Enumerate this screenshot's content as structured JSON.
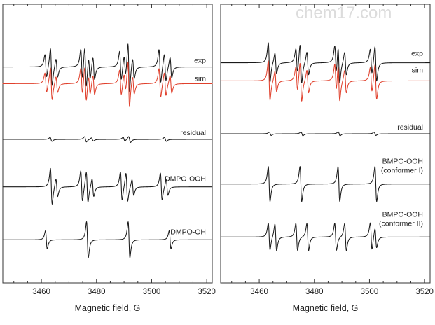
{
  "watermark": "chem17.com",
  "colors": {
    "experimental": "#1a1a1a",
    "simulated": "#e0402c",
    "axis": "#333333"
  },
  "chart_data": [
    {
      "type": "line",
      "xlabel": "Magnetic field, G",
      "xlim": [
        3446,
        3522
      ],
      "xticks": [
        3460,
        3480,
        3500,
        3520
      ],
      "y_axis_shown": false,
      "grid": false,
      "series": [
        {
          "name": "exp",
          "color": "#1a1a1a",
          "offset": 0.775,
          "amplitude": 0.075,
          "lines": [
            {
              "x": 3461.6,
              "h": 0.55,
              "w": 0.55
            },
            {
              "x": 3463.6,
              "h": 0.9,
              "w": 0.55
            },
            {
              "x": 3465.6,
              "h": 0.45,
              "w": 0.55
            },
            {
              "x": 3474.6,
              "h": 0.75,
              "w": 0.55
            },
            {
              "x": 3476.0,
              "h": 1.0,
              "w": 0.55
            },
            {
              "x": 3477.4,
              "h": 0.55,
              "w": 0.55
            },
            {
              "x": 3479.0,
              "h": 0.55,
              "w": 0.55
            },
            {
              "x": 3488.7,
              "h": 0.7,
              "w": 0.55
            },
            {
              "x": 3490.3,
              "h": 0.5,
              "w": 0.55
            },
            {
              "x": 3491.7,
              "h": 1.2,
              "w": 0.5
            },
            {
              "x": 3493.4,
              "h": 0.5,
              "w": 0.55
            },
            {
              "x": 3503.0,
              "h": 0.8,
              "w": 0.55
            },
            {
              "x": 3504.9,
              "h": 0.65,
              "w": 0.55
            },
            {
              "x": 3507.0,
              "h": 0.5,
              "w": 0.55
            }
          ]
        },
        {
          "name": "sim",
          "color": "#e0402c",
          "offset": 0.715,
          "amplitude": 0.065,
          "lines": [
            {
              "x": 3461.6,
              "h": 0.55,
              "w": 0.55
            },
            {
              "x": 3463.6,
              "h": 0.9,
              "w": 0.55
            },
            {
              "x": 3465.6,
              "h": 0.45,
              "w": 0.55
            },
            {
              "x": 3474.6,
              "h": 0.75,
              "w": 0.55
            },
            {
              "x": 3476.0,
              "h": 1.0,
              "w": 0.55
            },
            {
              "x": 3477.4,
              "h": 0.55,
              "w": 0.55
            },
            {
              "x": 3479.0,
              "h": 0.55,
              "w": 0.55
            },
            {
              "x": 3488.7,
              "h": 0.7,
              "w": 0.55
            },
            {
              "x": 3490.3,
              "h": 0.5,
              "w": 0.55
            },
            {
              "x": 3491.7,
              "h": 1.3,
              "w": 0.5
            },
            {
              "x": 3493.4,
              "h": 0.5,
              "w": 0.55
            },
            {
              "x": 3503.0,
              "h": 0.8,
              "w": 0.55
            },
            {
              "x": 3504.9,
              "h": 0.65,
              "w": 0.55
            },
            {
              "x": 3507.0,
              "h": 0.5,
              "w": 0.55
            }
          ]
        },
        {
          "name": "residual",
          "color": "#1a1a1a",
          "offset": 0.515,
          "amplitude": 0.012,
          "lines": [
            {
              "x": 3463.5,
              "h": 0.6,
              "w": 0.6
            },
            {
              "x": 3476.0,
              "h": 0.8,
              "w": 0.6
            },
            {
              "x": 3478.5,
              "h": 0.5,
              "w": 0.6
            },
            {
              "x": 3490.0,
              "h": 0.6,
              "w": 0.6
            },
            {
              "x": 3492.0,
              "h": 0.9,
              "w": 0.6
            },
            {
              "x": 3505.0,
              "h": 0.6,
              "w": 0.6
            }
          ]
        },
        {
          "name": "DMPO-OOH",
          "color": "#1a1a1a",
          "offset": 0.345,
          "amplitude": 0.065,
          "lines": [
            {
              "x": 3463.6,
              "h": 1.0,
              "w": 0.55
            },
            {
              "x": 3465.6,
              "h": 0.5,
              "w": 0.55
            },
            {
              "x": 3474.6,
              "h": 0.85,
              "w": 0.55
            },
            {
              "x": 3476.6,
              "h": 0.85,
              "w": 0.55
            },
            {
              "x": 3478.7,
              "h": 0.5,
              "w": 0.55
            },
            {
              "x": 3489.0,
              "h": 0.8,
              "w": 0.55
            },
            {
              "x": 3491.0,
              "h": 0.8,
              "w": 0.55
            },
            {
              "x": 3493.2,
              "h": 0.45,
              "w": 0.55
            },
            {
              "x": 3503.5,
              "h": 0.75,
              "w": 0.55
            },
            {
              "x": 3505.6,
              "h": 0.45,
              "w": 0.55
            }
          ]
        },
        {
          "name": "DMPO-OH",
          "color": "#1a1a1a",
          "offset": 0.155,
          "amplitude": 0.065,
          "lines": [
            {
              "x": 3461.8,
              "h": 0.5,
              "w": 0.55
            },
            {
              "x": 3476.7,
              "h": 1.0,
              "w": 0.55
            },
            {
              "x": 3491.8,
              "h": 1.0,
              "w": 0.55
            },
            {
              "x": 3506.7,
              "h": 0.5,
              "w": 0.55
            }
          ]
        }
      ]
    },
    {
      "type": "line",
      "xlabel": "Magnetic field, G",
      "xlim": [
        3446,
        3522
      ],
      "xticks": [
        3460,
        3480,
        3500,
        3520
      ],
      "y_axis_shown": false,
      "grid": false,
      "series": [
        {
          "name": "exp",
          "color": "#1a1a1a",
          "offset": 0.79,
          "amplitude": 0.075,
          "lines": [
            {
              "x": 3463.6,
              "h": 0.95,
              "w": 0.55
            },
            {
              "x": 3466.0,
              "h": 0.5,
              "w": 0.55
            },
            {
              "x": 3473.6,
              "h": 0.6,
              "w": 0.55
            },
            {
              "x": 3475.1,
              "h": 0.95,
              "w": 0.55
            },
            {
              "x": 3477.6,
              "h": 0.55,
              "w": 0.55
            },
            {
              "x": 3487.7,
              "h": 0.7,
              "w": 0.55
            },
            {
              "x": 3488.9,
              "h": 0.9,
              "w": 0.55
            },
            {
              "x": 3491.3,
              "h": 0.55,
              "w": 0.55
            },
            {
              "x": 3500.6,
              "h": 0.6,
              "w": 0.55
            },
            {
              "x": 3502.3,
              "h": 0.85,
              "w": 0.55
            }
          ]
        },
        {
          "name": "sim",
          "color": "#e0402c",
          "offset": 0.725,
          "amplitude": 0.075,
          "lines": [
            {
              "x": 3463.6,
              "h": 0.95,
              "w": 0.55
            },
            {
              "x": 3466.0,
              "h": 0.5,
              "w": 0.55
            },
            {
              "x": 3473.6,
              "h": 0.6,
              "w": 0.55
            },
            {
              "x": 3475.1,
              "h": 0.95,
              "w": 0.55
            },
            {
              "x": 3477.6,
              "h": 0.55,
              "w": 0.55
            },
            {
              "x": 3487.7,
              "h": 0.7,
              "w": 0.55
            },
            {
              "x": 3488.9,
              "h": 0.9,
              "w": 0.55
            },
            {
              "x": 3491.3,
              "h": 0.55,
              "w": 0.55
            },
            {
              "x": 3500.6,
              "h": 0.6,
              "w": 0.55
            },
            {
              "x": 3502.3,
              "h": 0.85,
              "w": 0.55
            }
          ]
        },
        {
          "name": "residual",
          "color": "#1a1a1a",
          "offset": 0.535,
          "amplitude": 0.01,
          "lines": [
            {
              "x": 3464.0,
              "h": 0.6,
              "w": 0.6
            },
            {
              "x": 3475.5,
              "h": 0.7,
              "w": 0.6
            },
            {
              "x": 3489.0,
              "h": 0.7,
              "w": 0.6
            },
            {
              "x": 3502.0,
              "h": 0.6,
              "w": 0.6
            }
          ]
        },
        {
          "name": "BMPO-OOH\n(conformer I)",
          "color": "#1a1a1a",
          "offset": 0.355,
          "amplitude": 0.07,
          "lines": [
            {
              "x": 3463.6,
              "h": 0.9,
              "w": 0.55
            },
            {
              "x": 3475.1,
              "h": 0.9,
              "w": 0.55
            },
            {
              "x": 3488.9,
              "h": 0.9,
              "w": 0.55
            },
            {
              "x": 3502.3,
              "h": 0.9,
              "w": 0.55
            }
          ]
        },
        {
          "name": "BMPO-OOH\n(conformer II)",
          "color": "#1a1a1a",
          "offset": 0.165,
          "amplitude": 0.065,
          "lines": [
            {
              "x": 3463.6,
              "h": 0.75,
              "w": 0.55
            },
            {
              "x": 3466.0,
              "h": 0.75,
              "w": 0.55
            },
            {
              "x": 3473.6,
              "h": 0.75,
              "w": 0.55
            },
            {
              "x": 3477.6,
              "h": 0.75,
              "w": 0.55
            },
            {
              "x": 3487.7,
              "h": 0.75,
              "w": 0.55
            },
            {
              "x": 3491.3,
              "h": 0.75,
              "w": 0.55
            },
            {
              "x": 3500.6,
              "h": 0.75,
              "w": 0.55
            },
            {
              "x": 3502.3,
              "h": 0.55,
              "w": 0.55
            }
          ]
        }
      ]
    }
  ]
}
